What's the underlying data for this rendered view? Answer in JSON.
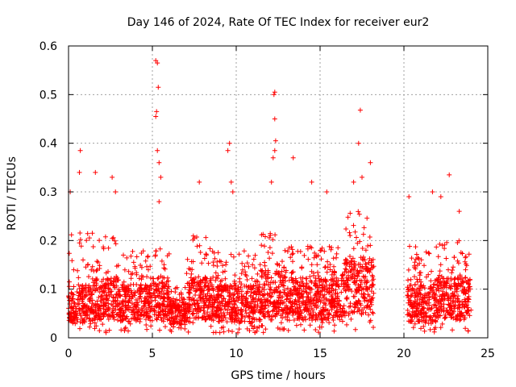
{
  "chart_data": {
    "type": "scatter",
    "title": "Day 146 of 2024, Rate Of TEC Index for receiver eur2",
    "xlabel": "GPS time / hours",
    "ylabel": "ROTI / TECUs",
    "xlim": [
      0,
      25
    ],
    "ylim": [
      0,
      0.6
    ],
    "xticks": [
      "0",
      "5",
      "10",
      "15",
      "20",
      "25"
    ],
    "yticks": [
      "0",
      "0.1",
      "0.2",
      "0.3",
      "0.4",
      "0.5",
      "0.6"
    ],
    "grid": true,
    "marker": "plus",
    "color": "#ff0000",
    "series": [
      {
        "name": "ROTI",
        "segments": [
          {
            "x_start": 0.0,
            "x_end": 0.5,
            "typical": 0.06,
            "spread": 0.15
          },
          {
            "x_start": 0.5,
            "x_end": 1.5,
            "typical": 0.07,
            "spread": 0.14
          },
          {
            "x_start": 1.5,
            "x_end": 3.0,
            "typical": 0.08,
            "spread": 0.12
          },
          {
            "x_start": 3.0,
            "x_end": 5.0,
            "typical": 0.07,
            "spread": 0.1
          },
          {
            "x_start": 5.0,
            "x_end": 6.0,
            "typical": 0.08,
            "spread": 0.1
          },
          {
            "x_start": 6.0,
            "x_end": 7.0,
            "typical": 0.05,
            "spread": 0.05
          },
          {
            "x_start": 7.0,
            "x_end": 8.5,
            "typical": 0.08,
            "spread": 0.12
          },
          {
            "x_start": 8.5,
            "x_end": 10.5,
            "typical": 0.07,
            "spread": 0.1
          },
          {
            "x_start": 10.5,
            "x_end": 11.5,
            "typical": 0.07,
            "spread": 0.09
          },
          {
            "x_start": 11.5,
            "x_end": 13.0,
            "typical": 0.09,
            "spread": 0.12
          },
          {
            "x_start": 13.0,
            "x_end": 15.5,
            "typical": 0.08,
            "spread": 0.1
          },
          {
            "x_start": 15.5,
            "x_end": 16.5,
            "typical": 0.09,
            "spread": 0.09
          },
          {
            "x_start": 16.5,
            "x_end": 18.2,
            "typical": 0.11,
            "spread": 0.14
          },
          {
            "x_start": 20.2,
            "x_end": 22.0,
            "typical": 0.07,
            "spread": 0.11
          },
          {
            "x_start": 22.0,
            "x_end": 24.0,
            "typical": 0.08,
            "spread": 0.11
          }
        ],
        "peaks": [
          {
            "x": 0.1,
            "y": 0.3
          },
          {
            "x": 0.7,
            "y": 0.385
          },
          {
            "x": 0.65,
            "y": 0.34
          },
          {
            "x": 1.6,
            "y": 0.34
          },
          {
            "x": 2.6,
            "y": 0.33
          },
          {
            "x": 2.8,
            "y": 0.3
          },
          {
            "x": 5.2,
            "y": 0.57
          },
          {
            "x": 5.3,
            "y": 0.565
          },
          {
            "x": 5.35,
            "y": 0.515
          },
          {
            "x": 5.25,
            "y": 0.465
          },
          {
            "x": 5.2,
            "y": 0.455
          },
          {
            "x": 5.3,
            "y": 0.385
          },
          {
            "x": 5.4,
            "y": 0.36
          },
          {
            "x": 5.5,
            "y": 0.33
          },
          {
            "x": 5.4,
            "y": 0.28
          },
          {
            "x": 7.8,
            "y": 0.32
          },
          {
            "x": 9.6,
            "y": 0.4
          },
          {
            "x": 9.5,
            "y": 0.385
          },
          {
            "x": 9.7,
            "y": 0.32
          },
          {
            "x": 9.8,
            "y": 0.3
          },
          {
            "x": 12.3,
            "y": 0.505
          },
          {
            "x": 12.25,
            "y": 0.5
          },
          {
            "x": 12.3,
            "y": 0.45
          },
          {
            "x": 12.35,
            "y": 0.405
          },
          {
            "x": 12.3,
            "y": 0.385
          },
          {
            "x": 12.2,
            "y": 0.37
          },
          {
            "x": 12.1,
            "y": 0.32
          },
          {
            "x": 13.4,
            "y": 0.37
          },
          {
            "x": 14.5,
            "y": 0.32
          },
          {
            "x": 15.4,
            "y": 0.3
          },
          {
            "x": 17.0,
            "y": 0.32
          },
          {
            "x": 17.3,
            "y": 0.4
          },
          {
            "x": 17.4,
            "y": 0.468
          },
          {
            "x": 17.5,
            "y": 0.33
          },
          {
            "x": 18.0,
            "y": 0.36
          },
          {
            "x": 20.3,
            "y": 0.29
          },
          {
            "x": 21.7,
            "y": 0.3
          },
          {
            "x": 22.2,
            "y": 0.29
          },
          {
            "x": 22.7,
            "y": 0.335
          },
          {
            "x": 23.3,
            "y": 0.26
          }
        ]
      }
    ]
  }
}
